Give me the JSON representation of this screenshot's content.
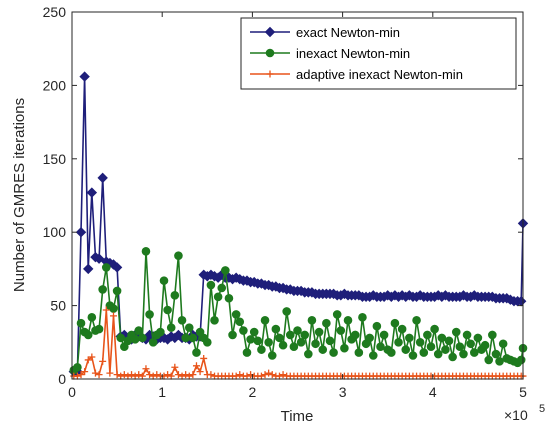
{
  "chart_data": {
    "type": "line",
    "title": "",
    "xlabel": "Time",
    "ylabel": "Number of GMRES iterations",
    "x_multiplier_label": {
      "base": "×10",
      "exp": "5"
    },
    "xlim": [
      0,
      5
    ],
    "ylim": [
      0,
      250
    ],
    "x_ticks": [
      0,
      1,
      2,
      3,
      4,
      5
    ],
    "y_ticks": [
      0,
      50,
      100,
      150,
      200,
      250
    ],
    "grid": false,
    "legend_position": "top-right",
    "series": [
      {
        "name": "exact Newton-min",
        "color": "#1f1f7a",
        "marker": "diamond",
        "x": [
          0.02,
          0.06,
          0.1,
          0.14,
          0.18,
          0.22,
          0.26,
          0.3,
          0.34,
          0.38,
          0.42,
          0.46,
          0.5,
          0.54,
          0.58,
          0.62,
          0.66,
          0.7,
          0.74,
          0.78,
          0.82,
          0.86,
          0.9,
          0.94,
          0.98,
          1.02,
          1.06,
          1.1,
          1.14,
          1.18,
          1.22,
          1.26,
          1.3,
          1.34,
          1.38,
          1.42,
          1.46,
          1.5,
          1.54,
          1.58,
          1.62,
          1.66,
          1.7,
          1.74,
          1.78,
          1.82,
          1.86,
          1.9,
          1.94,
          1.98,
          2.02,
          2.06,
          2.1,
          2.14,
          2.18,
          2.22,
          2.26,
          2.3,
          2.34,
          2.38,
          2.42,
          2.46,
          2.5,
          2.54,
          2.58,
          2.62,
          2.66,
          2.7,
          2.74,
          2.78,
          2.82,
          2.86,
          2.9,
          2.94,
          2.98,
          3.02,
          3.06,
          3.1,
          3.14,
          3.18,
          3.22,
          3.26,
          3.3,
          3.34,
          3.38,
          3.42,
          3.46,
          3.5,
          3.54,
          3.58,
          3.62,
          3.66,
          3.7,
          3.74,
          3.78,
          3.82,
          3.86,
          3.9,
          3.94,
          3.98,
          4.02,
          4.06,
          4.1,
          4.14,
          4.18,
          4.22,
          4.26,
          4.3,
          4.34,
          4.38,
          4.42,
          4.46,
          4.5,
          4.54,
          4.58,
          4.62,
          4.66,
          4.7,
          4.74,
          4.78,
          4.82,
          4.86,
          4.9,
          4.94,
          4.98,
          5.0
        ],
        "y": [
          5,
          5,
          100,
          206,
          75,
          127,
          83,
          82,
          137,
          80,
          79,
          78,
          76,
          29,
          30,
          28,
          27,
          30,
          29,
          28,
          27,
          30,
          29,
          27,
          28,
          28,
          27,
          29,
          28,
          30,
          28,
          28,
          27,
          30,
          29,
          29,
          71,
          70,
          71,
          70,
          69,
          71,
          69,
          69,
          68,
          69,
          68,
          67,
          67,
          66,
          66,
          65,
          65,
          64,
          64,
          63,
          63,
          62,
          62,
          61,
          61,
          60,
          60,
          60,
          59,
          59,
          59,
          58,
          58,
          58,
          58,
          58,
          58,
          57,
          57,
          58,
          57,
          57,
          57,
          57,
          56,
          56,
          56,
          57,
          56,
          56,
          56,
          57,
          56,
          57,
          56,
          57,
          56,
          57,
          56,
          56,
          57,
          56,
          56,
          56,
          56,
          57,
          56,
          57,
          56,
          56,
          56,
          56,
          57,
          56,
          56,
          57,
          56,
          56,
          56,
          56,
          56,
          55,
          55,
          55,
          55,
          54,
          53,
          53,
          53,
          106
        ]
      },
      {
        "name": "inexact Newton-min",
        "color": "#1e7a1e",
        "marker": "circle",
        "x": [
          0.02,
          0.06,
          0.1,
          0.14,
          0.18,
          0.22,
          0.26,
          0.3,
          0.34,
          0.38,
          0.42,
          0.46,
          0.5,
          0.54,
          0.58,
          0.62,
          0.66,
          0.7,
          0.74,
          0.78,
          0.82,
          0.86,
          0.9,
          0.94,
          0.98,
          1.02,
          1.06,
          1.1,
          1.14,
          1.18,
          1.22,
          1.26,
          1.3,
          1.34,
          1.38,
          1.42,
          1.46,
          1.5,
          1.54,
          1.58,
          1.62,
          1.66,
          1.7,
          1.74,
          1.78,
          1.82,
          1.86,
          1.9,
          1.94,
          1.98,
          2.02,
          2.06,
          2.1,
          2.14,
          2.18,
          2.22,
          2.26,
          2.3,
          2.34,
          2.38,
          2.42,
          2.46,
          2.5,
          2.54,
          2.58,
          2.62,
          2.66,
          2.7,
          2.74,
          2.78,
          2.82,
          2.86,
          2.9,
          2.94,
          2.98,
          3.02,
          3.06,
          3.1,
          3.14,
          3.18,
          3.22,
          3.26,
          3.3,
          3.34,
          3.38,
          3.42,
          3.46,
          3.5,
          3.54,
          3.58,
          3.62,
          3.66,
          3.7,
          3.74,
          3.78,
          3.82,
          3.86,
          3.9,
          3.94,
          3.98,
          4.02,
          4.06,
          4.1,
          4.14,
          4.18,
          4.22,
          4.26,
          4.3,
          4.34,
          4.38,
          4.42,
          4.46,
          4.5,
          4.54,
          4.58,
          4.62,
          4.66,
          4.7,
          4.74,
          4.78,
          4.82,
          4.86,
          4.9,
          4.94,
          4.98,
          5.0
        ],
        "y": [
          6,
          8,
          38,
          32,
          30,
          42,
          33,
          34,
          61,
          76,
          50,
          48,
          60,
          28,
          22,
          26,
          30,
          27,
          33,
          28,
          87,
          44,
          25,
          30,
          32,
          67,
          47,
          35,
          57,
          84,
          40,
          28,
          35,
          28,
          18,
          32,
          28,
          25,
          64,
          40,
          56,
          62,
          74,
          55,
          30,
          44,
          39,
          33,
          18,
          27,
          32,
          26,
          20,
          40,
          25,
          16,
          34,
          28,
          23,
          46,
          30,
          22,
          33,
          25,
          30,
          17,
          40,
          24,
          32,
          20,
          38,
          26,
          18,
          44,
          33,
          21,
          40,
          27,
          30,
          18,
          42,
          24,
          28,
          16,
          36,
          22,
          30,
          20,
          18,
          38,
          25,
          34,
          20,
          28,
          16,
          40,
          25,
          18,
          30,
          22,
          34,
          17,
          28,
          20,
          26,
          15,
          32,
          22,
          17,
          30,
          24,
          18,
          28,
          20,
          23,
          13,
          30,
          17,
          12,
          24,
          14,
          13,
          12,
          11,
          13,
          21
        ]
      },
      {
        "name": "adaptive inexact Newton-min",
        "color": "#e8541a",
        "marker": "plus",
        "x": [
          0.02,
          0.06,
          0.1,
          0.14,
          0.18,
          0.22,
          0.26,
          0.3,
          0.34,
          0.38,
          0.42,
          0.46,
          0.5,
          0.54,
          0.58,
          0.62,
          0.66,
          0.7,
          0.74,
          0.78,
          0.82,
          0.86,
          0.9,
          0.94,
          0.98,
          1.02,
          1.06,
          1.1,
          1.14,
          1.18,
          1.22,
          1.26,
          1.3,
          1.34,
          1.38,
          1.42,
          1.46,
          1.5,
          1.54,
          1.58,
          1.62,
          1.66,
          1.7,
          1.74,
          1.78,
          1.82,
          1.86,
          1.9,
          1.94,
          1.98,
          2.02,
          2.06,
          2.1,
          2.14,
          2.18,
          2.22,
          2.26,
          2.3,
          2.34,
          2.38,
          2.42,
          2.46,
          2.5,
          2.54,
          2.58,
          2.62,
          2.66,
          2.7,
          2.74,
          2.78,
          2.82,
          2.86,
          2.9,
          2.94,
          2.98,
          3.02,
          3.06,
          3.1,
          3.14,
          3.18,
          3.22,
          3.26,
          3.3,
          3.34,
          3.38,
          3.42,
          3.46,
          3.5,
          3.54,
          3.58,
          3.62,
          3.66,
          3.7,
          3.74,
          3.78,
          3.82,
          3.86,
          3.9,
          3.94,
          3.98,
          4.02,
          4.06,
          4.1,
          4.14,
          4.18,
          4.22,
          4.26,
          4.3,
          4.34,
          4.38,
          4.42,
          4.46,
          4.5,
          4.54,
          4.58,
          4.62,
          4.66,
          4.7,
          4.74,
          4.78,
          4.82,
          4.86,
          4.9,
          4.94,
          4.98,
          5.0
        ],
        "y": [
          2,
          2,
          3,
          5,
          13,
          15,
          4,
          3,
          12,
          47,
          4,
          43,
          3,
          2,
          3,
          2,
          3,
          2,
          3,
          2,
          7,
          3,
          2,
          3,
          2,
          2,
          3,
          2,
          8,
          3,
          2,
          3,
          2,
          3,
          9,
          5,
          14,
          3,
          3,
          2,
          2,
          2,
          2,
          2,
          2,
          2,
          3,
          2,
          2,
          3,
          2,
          2,
          2,
          3,
          4,
          3,
          2,
          2,
          3,
          2,
          2,
          2,
          2,
          2,
          2,
          2,
          2,
          2,
          2,
          2,
          2,
          2,
          2,
          2,
          2,
          2,
          2,
          2,
          2,
          2,
          2,
          2,
          2,
          2,
          2,
          2,
          2,
          2,
          2,
          2,
          2,
          2,
          2,
          2,
          2,
          2,
          2,
          2,
          2,
          2,
          2,
          2,
          2,
          2,
          2,
          2,
          2,
          2,
          2,
          2,
          2,
          2,
          2,
          2,
          2,
          2,
          2,
          2,
          2,
          2,
          2,
          2,
          2,
          2,
          2,
          2
        ]
      }
    ]
  }
}
